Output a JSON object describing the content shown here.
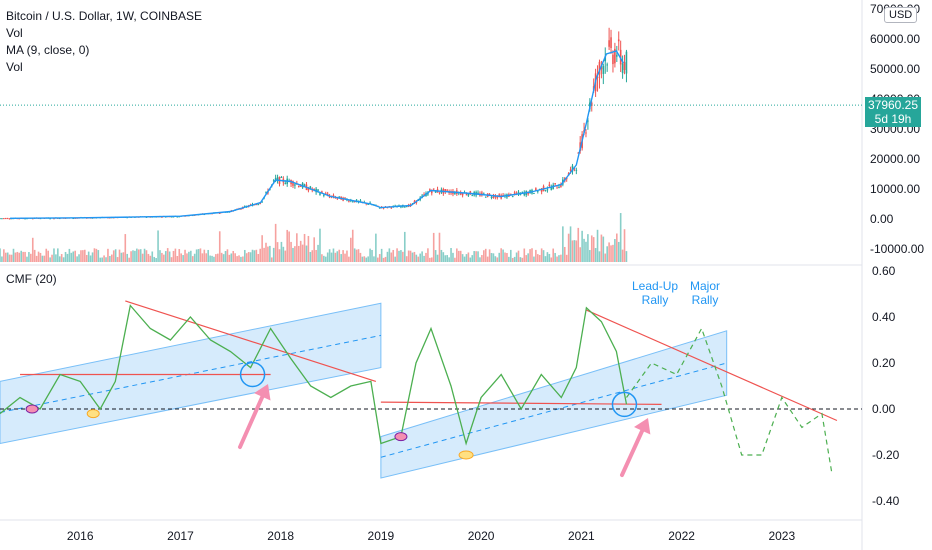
{
  "header": {
    "symbol": "Bitcoin / U.S. Dollar, 1W, COINBASE",
    "studies": [
      "Vol",
      "MA (9, close, 0)",
      "Vol"
    ],
    "currency": "USD"
  },
  "price_tag": {
    "price": "37960.25",
    "countdown": "5d 19h"
  },
  "annotations": [
    {
      "id": "lead_up_rally",
      "lines": [
        "Lead-Up",
        "Rally"
      ]
    },
    {
      "id": "major_rally",
      "lines": [
        "Major",
        "Rally"
      ]
    }
  ],
  "colors": {
    "up": "#26a69a",
    "down": "#ef5350",
    "ma": "#2196f3",
    "cmf": "#4caf50",
    "channel_fill": "#bbdefb",
    "channel_line": "#2196f3",
    "trend_line": "#ef5350",
    "arrow": "#f48fb1",
    "circle": "#2196f3"
  },
  "chart_data": [
    {
      "type": "line",
      "pane": "price",
      "y_axis_ticks": [
        "70000.00",
        "60000.00",
        "50000.00",
        "40000.00",
        "30000.00",
        "20000.00",
        "10000.00",
        "0.00",
        "-10000.00"
      ],
      "ylim": [
        -12000,
        71000
      ],
      "series": [
        {
          "name": "MA (9, close, 0)",
          "x": [
            2015.3,
            2016.0,
            2016.5,
            2017.0,
            2017.5,
            2017.8,
            2017.95,
            2018.1,
            2018.5,
            2018.9,
            2019.0,
            2019.3,
            2019.5,
            2019.9,
            2020.2,
            2020.5,
            2020.8,
            2020.95,
            2021.05,
            2021.15,
            2021.25,
            2021.35,
            2021.42
          ],
          "y": [
            250,
            400,
            650,
            950,
            2500,
            5500,
            13000,
            12500,
            7500,
            5000,
            3800,
            4500,
            9500,
            8500,
            7500,
            9000,
            11500,
            18000,
            32000,
            47000,
            55000,
            56000,
            52000
          ]
        }
      ],
      "price_line": 37960.25
    },
    {
      "type": "line",
      "pane": "indicator",
      "title": "CMF (20)",
      "y_axis_ticks": [
        "0.60",
        "0.40",
        "0.20",
        "0.00",
        "-0.20",
        "-0.40"
      ],
      "ylim": [
        -0.5,
        0.62
      ],
      "x_axis_ticks": [
        "2016",
        "2017",
        "2018",
        "2019",
        "2020",
        "2021",
        "2022",
        "2023"
      ],
      "xlim": [
        2015.2,
        2023.8
      ],
      "series": [
        {
          "name": "CMF (20)",
          "x": [
            2015.2,
            2015.4,
            2015.6,
            2015.8,
            2016.0,
            2016.2,
            2016.35,
            2016.5,
            2016.7,
            2016.9,
            2017.1,
            2017.3,
            2017.5,
            2017.7,
            2017.9,
            2018.1,
            2018.3,
            2018.5,
            2018.7,
            2018.9,
            2019.0,
            2019.2,
            2019.35,
            2019.5,
            2019.7,
            2019.85,
            2020.0,
            2020.2,
            2020.4,
            2020.6,
            2020.8,
            2020.95,
            2021.05,
            2021.2,
            2021.35,
            2021.45
          ],
          "y": [
            -0.02,
            0.05,
            0.0,
            0.15,
            0.12,
            0.0,
            0.12,
            0.45,
            0.35,
            0.3,
            0.4,
            0.3,
            0.25,
            0.18,
            0.35,
            0.22,
            0.1,
            0.05,
            0.1,
            0.12,
            -0.15,
            -0.12,
            0.2,
            0.35,
            0.1,
            -0.15,
            0.05,
            0.15,
            0.0,
            0.15,
            0.05,
            0.18,
            0.44,
            0.38,
            0.25,
            0.02
          ]
        }
      ],
      "projection": {
        "x": [
          2021.45,
          2021.7,
          2021.95,
          2022.2,
          2022.4,
          2022.6,
          2022.8,
          2023.0,
          2023.2,
          2023.4,
          2023.5
        ],
        "y": [
          0.05,
          0.2,
          0.15,
          0.35,
          0.1,
          -0.2,
          -0.2,
          0.05,
          -0.08,
          -0.02,
          -0.28
        ]
      },
      "zero_line": 0
    }
  ]
}
